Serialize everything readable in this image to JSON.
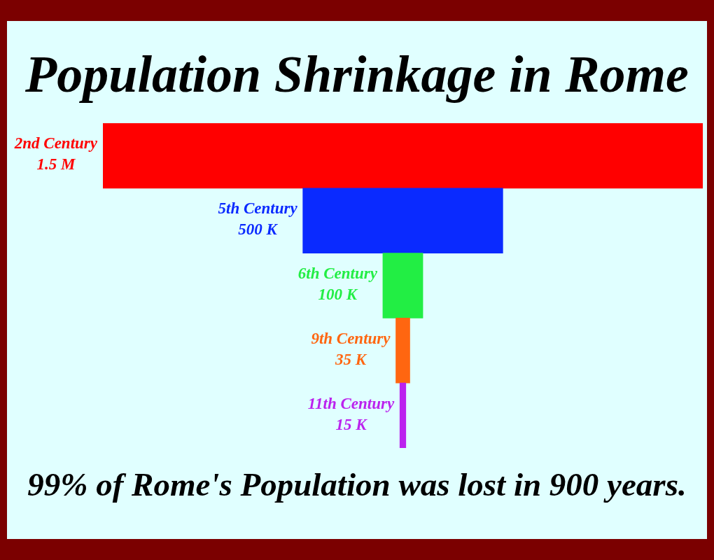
{
  "chart_data": {
    "type": "other",
    "title": "Population Shrinkage in Rome",
    "categories": [
      "2nd Century",
      "5th Century",
      "6th Century",
      "9th Century",
      "11th Century"
    ],
    "values": [
      1500000,
      500000,
      100000,
      35000,
      15000
    ],
    "value_labels": [
      "1.5 M",
      "500 K",
      "100 K",
      "35 K",
      "15 K"
    ],
    "colors": [
      "#ff0000",
      "#0a2aff",
      "#22ee44",
      "#ff6610",
      "#bb22ee"
    ],
    "annotations": [
      "99% of Rome's Population was lost in 900 years."
    ]
  }
}
